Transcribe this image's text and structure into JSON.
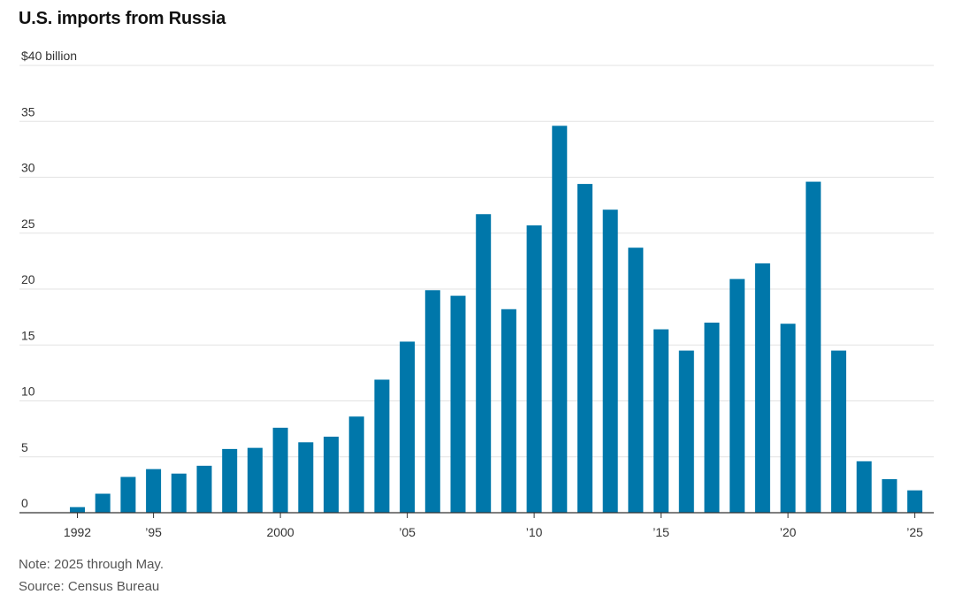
{
  "title": "U.S. imports from Russia",
  "note": "Note: 2025 through May.",
  "source": "Source: Census Bureau",
  "colors": {
    "bar": "#0077aa",
    "grid": "#e3e3e3",
    "baseline": "#333333",
    "tick_text": "#333333"
  },
  "chart_data": {
    "type": "bar",
    "title": "U.S. imports from Russia",
    "ylabel": "$40 billion",
    "ylim": [
      0,
      40
    ],
    "y_ticks": [
      0,
      5,
      10,
      15,
      20,
      25,
      30,
      35,
      40
    ],
    "y_tick_labels": [
      "0",
      "5",
      "10",
      "15",
      "20",
      "25",
      "30",
      "35",
      "$40 billion"
    ],
    "grid": true,
    "categories": [
      1992,
      1993,
      1994,
      1995,
      1996,
      1997,
      1998,
      1999,
      2000,
      2001,
      2002,
      2003,
      2004,
      2005,
      2006,
      2007,
      2008,
      2009,
      2010,
      2011,
      2012,
      2013,
      2014,
      2015,
      2016,
      2017,
      2018,
      2019,
      2020,
      2021,
      2022,
      2023,
      2024,
      2025
    ],
    "values": [
      0.5,
      1.7,
      3.2,
      3.9,
      3.5,
      4.2,
      5.7,
      5.8,
      7.6,
      6.3,
      6.8,
      8.6,
      11.9,
      15.3,
      19.9,
      19.4,
      26.7,
      18.2,
      25.7,
      34.6,
      29.4,
      27.1,
      23.7,
      16.4,
      14.5,
      17.0,
      20.9,
      22.3,
      16.9,
      29.6,
      14.5,
      4.6,
      3.0,
      2.0
    ],
    "x_tick_labels": [
      {
        "category": 1992,
        "label": "1992"
      },
      {
        "category": 1995,
        "label": "’95"
      },
      {
        "category": 2000,
        "label": "2000"
      },
      {
        "category": 2005,
        "label": "’05"
      },
      {
        "category": 2010,
        "label": "’10"
      },
      {
        "category": 2015,
        "label": "’15"
      },
      {
        "category": 2020,
        "label": "’20"
      },
      {
        "category": 2025,
        "label": "’25"
      }
    ]
  }
}
